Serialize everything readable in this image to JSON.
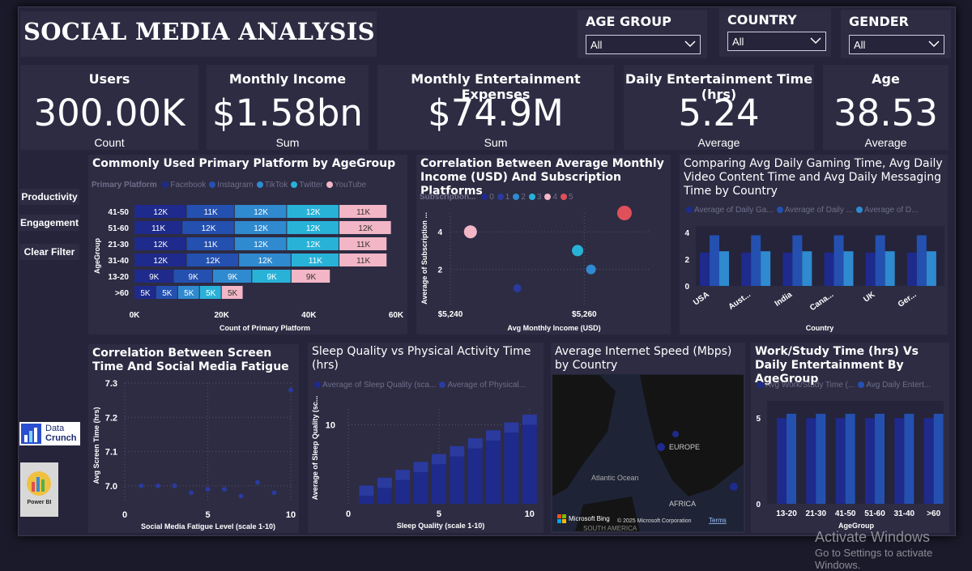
{
  "app": {
    "title": "SOCIAL MEDIA ANALYSIS"
  },
  "slicers": [
    {
      "label": "AGE GROUP",
      "value": "All"
    },
    {
      "label": "COUNTRY",
      "value": "All"
    },
    {
      "label": "GENDER",
      "value": "All"
    }
  ],
  "kpis": [
    {
      "title": "Users",
      "value": "300.00K",
      "sub": "Count"
    },
    {
      "title": "Monthly Income",
      "value": "$1.58bn",
      "sub": "Sum"
    },
    {
      "title": "Monthly Entertainment Expenses",
      "value": "$74.9M",
      "sub": "Sum"
    },
    {
      "title": "Daily Entertainment Time (hrs)",
      "value": "5.24",
      "sub": "Average"
    },
    {
      "title": "Age",
      "value": "38.53",
      "sub": "Average"
    }
  ],
  "buttons": {
    "productivity": "Productivity",
    "engagement": "Engagement",
    "clear": "Clear Filter"
  },
  "logos": {
    "datacrunch_line1": "Data",
    "datacrunch_line2": "Crunch",
    "powerbi": "Power BI"
  },
  "chart_data": [
    {
      "type": "bar",
      "title": "Commonly Used Primary Platform by AgeGroup",
      "legend_title": "Primary Platform",
      "categories": [
        "41-50",
        "51-60",
        "21-30",
        "31-40",
        "13-20",
        ">60"
      ],
      "series": [
        {
          "name": "Facebook",
          "values": [
            12,
            11,
            12,
            12,
            9,
            5
          ],
          "labels": [
            "12K",
            "11K",
            "12K",
            "12K",
            "9K",
            "5K"
          ]
        },
        {
          "name": "Instagram",
          "values": [
            11,
            12,
            11,
            12,
            9,
            5
          ],
          "labels": [
            "11K",
            "12K",
            "11K",
            "12K",
            "9K",
            "5K"
          ]
        },
        {
          "name": "TikTok",
          "values": [
            12,
            12,
            12,
            12,
            9,
            5
          ],
          "labels": [
            "12K",
            "12K",
            "12K",
            "12K",
            "9K",
            "5K"
          ]
        },
        {
          "name": "Twitter",
          "values": [
            12,
            12,
            12,
            11,
            9,
            5
          ],
          "labels": [
            "12K",
            "12K",
            "12K",
            "11K",
            "9K",
            "5K"
          ]
        },
        {
          "name": "YouTube",
          "values": [
            11,
            12,
            11,
            11,
            9,
            5
          ],
          "labels": [
            "11K",
            "12K",
            "11K",
            "11K",
            "9K",
            "5K"
          ]
        }
      ],
      "unit": "thousands",
      "xlabel": "Count of Primary Platform",
      "ylabel": "AgeGroup",
      "xticks": [
        "0K",
        "20K",
        "40K",
        "60K"
      ],
      "xlim": [
        0,
        60
      ],
      "colors": [
        "#1e2a8c",
        "#2450b0",
        "#2f8ad0",
        "#29b2d8",
        "#f2b6c6"
      ]
    },
    {
      "type": "scatter",
      "title": "Correlation Between Average Monthly Income (USD) And Subscription Platforms",
      "legend_title": "Subscription...",
      "series": [
        {
          "name": "0",
          "x": null,
          "y": 0
        },
        {
          "name": "1",
          "x": 5250,
          "y": 1
        },
        {
          "name": "2",
          "x": 5261,
          "y": 2
        },
        {
          "name": "3",
          "x": 5259,
          "y": 3
        },
        {
          "name": "4",
          "x": 5243,
          "y": 4
        },
        {
          "name": "5",
          "x": 5266,
          "y": 5
        }
      ],
      "sizes": [
        0,
        5,
        6,
        7,
        8,
        9
      ],
      "xlabel": "Avg Monthly Income (USD)",
      "ylabel": "Average of Subscription ...",
      "xticks": [
        "$5,240",
        "$5,260"
      ],
      "yticks": [
        "2",
        "4"
      ],
      "xlim": [
        5240,
        5270
      ],
      "ylim": [
        0,
        5
      ],
      "colors": [
        "#1e2a8c",
        "#2a3a9e",
        "#2f8ad0",
        "#29b2d8",
        "#f2b6c6",
        "#e0505a"
      ]
    },
    {
      "type": "bar",
      "title": "Comparing Avg Daily Gaming Time, Avg Daily Video Content Time and Avg Daily Messaging Time by Country",
      "categories": [
        "USA",
        "Aust...",
        "India",
        "Cana...",
        "UK",
        "Ger..."
      ],
      "series": [
        {
          "name": "Average of Daily Ga...",
          "values": [
            2.5,
            2.5,
            2.5,
            2.5,
            2.5,
            2.5
          ]
        },
        {
          "name": "Average of Daily ...",
          "values": [
            3.8,
            3.8,
            3.8,
            3.8,
            3.8,
            3.8
          ]
        },
        {
          "name": "Average of D...",
          "values": [
            2.6,
            2.6,
            2.6,
            2.6,
            2.6,
            2.6
          ]
        }
      ],
      "xlabel": "Country",
      "yticks": [
        "0",
        "2",
        "4"
      ],
      "ylim": [
        0,
        4.5
      ],
      "colors": [
        "#1e2a8c",
        "#2450b0",
        "#2f8ad0"
      ]
    },
    {
      "type": "scatter",
      "title": "Correlation Between Screen Time And Social Media Fatigue",
      "x": [
        1,
        2,
        3,
        4,
        5,
        6,
        7,
        8,
        9,
        10
      ],
      "y": [
        7.0,
        7.0,
        7.0,
        6.98,
        6.99,
        6.99,
        6.97,
        7.01,
        6.98,
        7.28
      ],
      "xlabel": "Social Media Fatigue Level (scale 1-10)",
      "ylabel": "Avg Screen Time (hrs)",
      "xticks": [
        "0",
        "5",
        "10"
      ],
      "yticks": [
        "7.0",
        "7.1",
        "7.2",
        "7.3"
      ],
      "xlim": [
        0,
        10
      ],
      "ylim": [
        6.95,
        7.3
      ],
      "colors": [
        "#2a3a9e"
      ]
    },
    {
      "type": "bar",
      "title": "Sleep Quality vs Physical Activity Time (hrs)",
      "x": [
        1,
        2,
        3,
        4,
        5,
        6,
        7,
        8,
        9,
        10
      ],
      "series": [
        {
          "name": "Average of Sleep Quality (sca...",
          "values": [
            1,
            2,
            3,
            4,
            5,
            6,
            7,
            8,
            9,
            10
          ]
        },
        {
          "name": "Average of Physical...",
          "values": [
            2.3,
            3.3,
            4.3,
            5.3,
            6.3,
            7.3,
            8.3,
            9.3,
            10.3,
            11.3
          ]
        }
      ],
      "xlabel": "Sleep Quality (scale 1-10)",
      "ylabel": "Average of Sleep Quality (sc...",
      "xticks": [
        "0",
        "5",
        "10"
      ],
      "yticks": [
        "10"
      ],
      "xlim": [
        0,
        10.5
      ],
      "ylim": [
        0,
        12
      ],
      "colors": [
        "#1e2a8c",
        "#2a3a9e"
      ]
    },
    {
      "type": "map",
      "title": "Average Internet Speed (Mbps) by Country",
      "labels": [
        "EUROPE",
        "Atlantic Ocean",
        "AFRICA",
        "SOUTH AMERICA"
      ],
      "attribution": "© 2025 Microsoft Corporation",
      "terms": "Terms",
      "brand": "Microsoft Bing",
      "colors": [
        "#1e2a8c"
      ]
    },
    {
      "type": "bar",
      "title": "Work/Study Time (hrs) Vs Daily Entertainment By AgeGroup",
      "categories": [
        "13-20",
        "21-30",
        "41-50",
        "51-60",
        "31-40",
        ">60"
      ],
      "series": [
        {
          "name": "Avg Work/Study Time (...",
          "values": [
            5.0,
            5.0,
            5.0,
            5.0,
            5.0,
            5.0
          ]
        },
        {
          "name": "Avg Daily Entert...",
          "values": [
            5.25,
            5.25,
            5.25,
            5.25,
            5.25,
            5.25
          ]
        }
      ],
      "xlabel": "AgeGroup",
      "yticks": [
        "0",
        "5"
      ],
      "ylim": [
        0,
        6
      ],
      "colors": [
        "#1e2a8c",
        "#2450b0"
      ]
    }
  ],
  "watermark": {
    "line1": "Activate Windows",
    "line2": "Go to Settings to activate Windows."
  }
}
